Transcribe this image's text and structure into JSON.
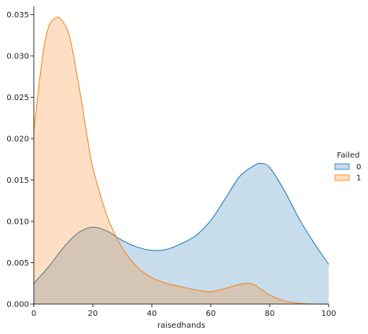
{
  "chart_data": {
    "type": "area",
    "xlabel": "raisedhands",
    "ylabel": "",
    "xlim": [
      0,
      100
    ],
    "ylim": [
      0,
      0.036
    ],
    "x_ticks": [
      0,
      20,
      40,
      60,
      80,
      100
    ],
    "x_tick_labels": [
      "0",
      "20",
      "40",
      "60",
      "80",
      "100"
    ],
    "y_ticks": [
      0,
      0.005,
      0.01,
      0.015,
      0.02,
      0.025,
      0.03,
      0.035
    ],
    "y_tick_labels": [
      "0.000",
      "0.005",
      "0.010",
      "0.015",
      "0.020",
      "0.025",
      "0.030",
      "0.035"
    ],
    "grid": false,
    "legend": {
      "title": "Failed",
      "placement": "right"
    },
    "series": [
      {
        "name": "0",
        "line_color": "#1f77b4",
        "fill_color": "#1f77b4",
        "x": [
          0,
          5,
          10,
          15,
          20,
          25,
          30,
          35,
          40,
          45,
          50,
          55,
          60,
          65,
          70,
          75,
          77,
          80,
          85,
          90,
          95,
          100
        ],
        "y": [
          0.0025,
          0.0045,
          0.0068,
          0.0086,
          0.0093,
          0.0088,
          0.0077,
          0.0069,
          0.0065,
          0.0066,
          0.0073,
          0.0083,
          0.0101,
          0.0128,
          0.0155,
          0.0168,
          0.017,
          0.0165,
          0.0137,
          0.0103,
          0.0074,
          0.0048
        ]
      },
      {
        "name": "1",
        "line_color": "#ff7f0e",
        "fill_color": "#ff7f0e",
        "x": [
          0,
          3,
          5,
          7,
          9,
          12,
          15,
          18,
          20,
          25,
          30,
          35,
          40,
          45,
          50,
          55,
          60,
          65,
          70,
          73,
          75,
          80,
          85,
          90,
          95,
          100
        ],
        "y": [
          0.021,
          0.03,
          0.0335,
          0.0345,
          0.0345,
          0.0325,
          0.027,
          0.0205,
          0.0165,
          0.0105,
          0.0068,
          0.0045,
          0.0032,
          0.0025,
          0.0021,
          0.0017,
          0.0015,
          0.0019,
          0.0024,
          0.0025,
          0.0023,
          0.0011,
          0.0004,
          0.0001,
          0.0,
          0.0
        ]
      }
    ]
  }
}
